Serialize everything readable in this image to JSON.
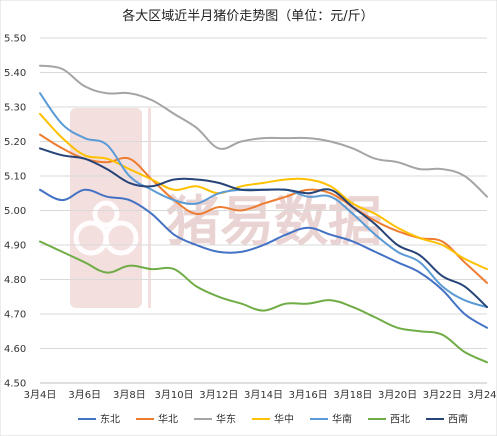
{
  "chart_data": {
    "type": "line",
    "title": "各大区域近半月猪价走势图（单位：元/斤）",
    "xlabel": "",
    "ylabel": "",
    "ylim": [
      4.5,
      5.5
    ],
    "yticks": [
      "4.50",
      "4.60",
      "4.70",
      "4.80",
      "4.90",
      "5.00",
      "5.10",
      "5.20",
      "5.30",
      "5.40",
      "5.50"
    ],
    "x": [
      "3月4日",
      "3月5日",
      "3月6日",
      "3月7日",
      "3月8日",
      "3月9日",
      "3月10日",
      "3月11日",
      "3月12日",
      "3月13日",
      "3月14日",
      "3月15日",
      "3月16日",
      "3月17日",
      "3月18日",
      "3月19日",
      "3月20日",
      "3月21日",
      "3月22日",
      "3月23日",
      "3月24日"
    ],
    "xticks": [
      "3月4日",
      "3月6日",
      "3月8日",
      "3月10日",
      "3月12日",
      "3月14日",
      "3月16日",
      "3月18日",
      "3月20日",
      "3月22日",
      "3月24日"
    ],
    "grid": true,
    "legend_position": "bottom",
    "series": [
      {
        "name": "东北",
        "color": "#4472c4",
        "values": [
          5.06,
          5.03,
          5.06,
          5.04,
          5.03,
          4.99,
          4.93,
          4.9,
          4.88,
          4.88,
          4.9,
          4.93,
          4.95,
          4.93,
          4.91,
          4.88,
          4.85,
          4.82,
          4.77,
          4.7,
          4.66
        ]
      },
      {
        "name": "华北",
        "color": "#ed7d31",
        "values": [
          5.22,
          5.18,
          5.15,
          5.14,
          5.15,
          5.09,
          5.03,
          4.99,
          5.01,
          5.0,
          5.02,
          5.04,
          5.06,
          5.05,
          5.01,
          4.97,
          4.94,
          4.92,
          4.91,
          4.85,
          4.79
        ]
      },
      {
        "name": "华东",
        "color": "#a5a5a5",
        "values": [
          5.42,
          5.41,
          5.36,
          5.34,
          5.34,
          5.32,
          5.28,
          5.24,
          5.18,
          5.2,
          5.21,
          5.21,
          5.21,
          5.2,
          5.18,
          5.15,
          5.14,
          5.12,
          5.12,
          5.1,
          5.04
        ]
      },
      {
        "name": "华中",
        "color": "#ffc000",
        "values": [
          5.28,
          5.21,
          5.16,
          5.15,
          5.12,
          5.09,
          5.06,
          5.07,
          5.05,
          5.07,
          5.08,
          5.09,
          5.09,
          5.07,
          5.02,
          4.99,
          4.95,
          4.92,
          4.9,
          4.86,
          4.83
        ]
      },
      {
        "name": "华南",
        "color": "#5b9bd5",
        "values": [
          5.34,
          5.25,
          5.21,
          5.19,
          5.1,
          5.06,
          5.03,
          5.02,
          5.05,
          5.06,
          5.06,
          5.06,
          5.04,
          5.04,
          4.99,
          4.93,
          4.88,
          4.85,
          4.78,
          4.74,
          4.72
        ]
      },
      {
        "name": "西北",
        "color": "#70ad47",
        "values": [
          4.91,
          4.88,
          4.85,
          4.82,
          4.84,
          4.83,
          4.83,
          4.78,
          4.75,
          4.73,
          4.71,
          4.73,
          4.73,
          4.74,
          4.72,
          4.69,
          4.66,
          4.65,
          4.64,
          4.59,
          4.56
        ]
      },
      {
        "name": "西南",
        "color": "#264478",
        "values": [
          5.18,
          5.16,
          5.15,
          5.12,
          5.08,
          5.07,
          5.09,
          5.09,
          5.08,
          5.06,
          5.06,
          5.06,
          5.05,
          5.06,
          5.01,
          4.96,
          4.9,
          4.87,
          4.81,
          4.78,
          4.72
        ]
      }
    ]
  },
  "watermark": {
    "text": "猪易数据"
  }
}
